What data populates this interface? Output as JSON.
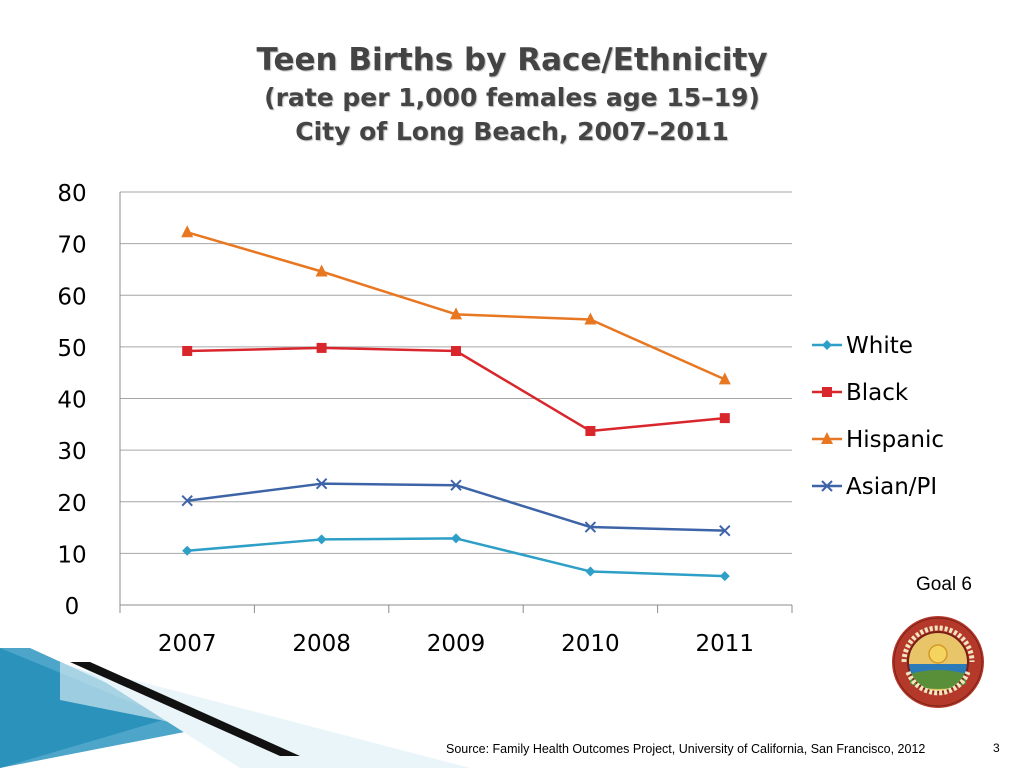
{
  "title_lines": [
    "Teen Births by Race/Ethnicity",
    "(rate per 1,000 females age 15–19)",
    "City of Long Beach, 2007–2011"
  ],
  "chart_data": {
    "type": "line",
    "title": "Teen Births by Race/Ethnicity (rate per 1,000 females age 15–19) City of Long Beach, 2007–2011",
    "categories": [
      "2007",
      "2008",
      "2009",
      "2010",
      "2011"
    ],
    "ylim": [
      0,
      80
    ],
    "yticks": [
      0,
      10,
      20,
      30,
      40,
      50,
      60,
      70,
      80
    ],
    "grid": true,
    "legend_position": "right",
    "series": [
      {
        "name": "White",
        "values": [
          10.5,
          12.7,
          12.9,
          6.5,
          5.6
        ],
        "color": "#2e9fc7",
        "marker": "diamond"
      },
      {
        "name": "Black",
        "values": [
          49.2,
          49.8,
          49.2,
          33.7,
          36.2
        ],
        "color": "#d9262c",
        "marker": "square"
      },
      {
        "name": "Hispanic",
        "values": [
          72.2,
          64.6,
          56.3,
          55.3,
          43.7
        ],
        "color": "#e87722",
        "marker": "triangle"
      },
      {
        "name": "Asian/PI",
        "values": [
          20.2,
          23.5,
          23.2,
          15.1,
          14.4
        ],
        "color": "#3e64a8",
        "marker": "x"
      }
    ]
  },
  "goal_label": "Goal 6",
  "source": "Source: Family Health Outcomes Project, University of California, San Francisco, 2012",
  "page_number": "3",
  "seal": {
    "name": "City of Long Beach seal",
    "top_text": "CITY OF LONG BEACH",
    "bottom_text": "INCORPORATED 1897",
    "ring_color": "#b5392b"
  }
}
